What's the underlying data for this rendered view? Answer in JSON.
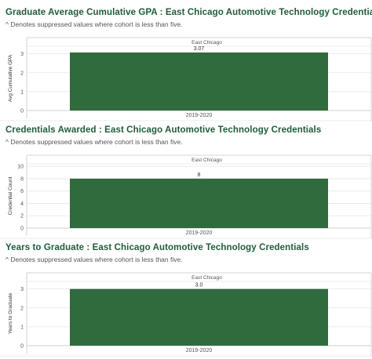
{
  "colors": {
    "bar": "#2f6b3d",
    "title": "#1f5c3a",
    "grid": "#e6e6e6",
    "frame": "#c8c8c8"
  },
  "charts": [
    {
      "title": "Graduate Average Cumulative GPA : East Chicago Automotive Technology Credentials",
      "subtitle": "^ Denotes suppressed values where cohort is less than five."
    },
    {
      "title": "Credentials Awarded : East Chicago Automotive Technology Credentials",
      "subtitle": "^ Denotes suppressed values where cohort is less than five."
    },
    {
      "title": "Years to Graduate : East Chicago Automotive Technology Credentials",
      "subtitle": "^ Denotes suppressed values where cohort is less than five."
    }
  ],
  "chart_data": [
    {
      "type": "bar",
      "column_header": "East Chicago",
      "categories": [
        "2019-2020"
      ],
      "values": [
        3.07
      ],
      "value_labels": [
        "3.07"
      ],
      "ylabel": "Avg Cumulative GPA",
      "yticks": [
        0,
        1,
        2,
        3
      ],
      "ylim": [
        0,
        3.4
      ],
      "grid": true
    },
    {
      "type": "bar",
      "column_header": "East Chicago",
      "categories": [
        "2019-2020"
      ],
      "values": [
        8
      ],
      "value_labels": [
        "8"
      ],
      "ylabel": "Credential Count",
      "yticks": [
        0,
        2,
        4,
        6,
        8,
        10
      ],
      "ylim": [
        0,
        10.4
      ],
      "grid": true
    },
    {
      "type": "bar",
      "column_header": "East Chicago",
      "categories": [
        "2019-2020"
      ],
      "values": [
        3.0
      ],
      "value_labels": [
        "3.0"
      ],
      "ylabel": "Years to Graduate",
      "yticks": [
        0,
        1,
        2,
        3
      ],
      "ylim": [
        0,
        3.4
      ],
      "grid": true
    }
  ]
}
